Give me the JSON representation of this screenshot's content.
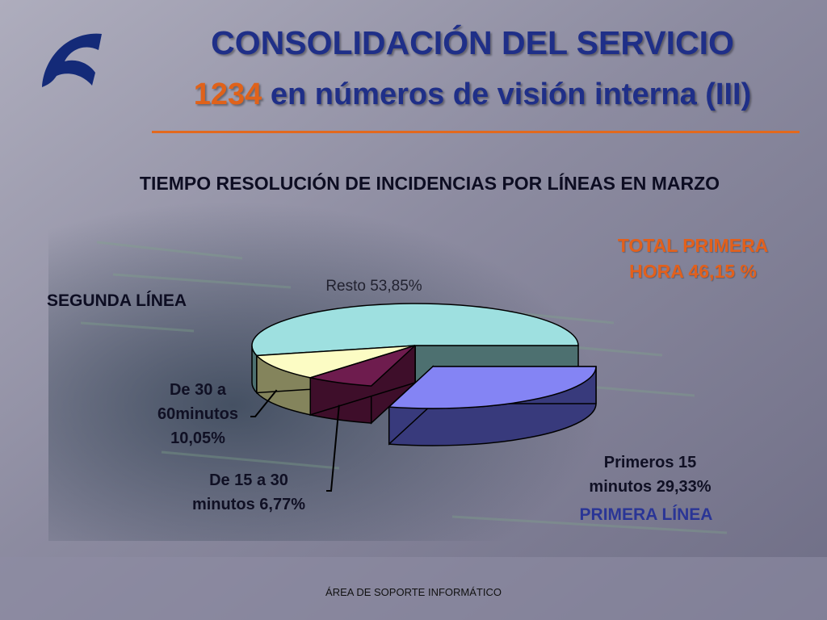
{
  "slide": {
    "title_line1": "CONSOLIDACIÓN DEL SERVICIO",
    "title_line2_number": "1234",
    "title_line2_rest": " en números de visión interna (III)",
    "second_line_label": "SEGUNDA LÍNEA",
    "first_line_label": "PRIMERA LÍNEA",
    "first_hour_total_line1": "TOTAL PRIMERA",
    "first_hour_total_line2": "HORA 46,15 %",
    "footer": "ÁREA DE SOPORTE INFORMÁTICO"
  },
  "colors": {
    "title": "#1f2f88",
    "accent": "#e2601c",
    "divider": "#e2691e",
    "first_line": "#2a3596"
  },
  "chart_data": {
    "type": "pie",
    "title": "TIEMPO RESOLUCIÓN DE INCIDENCIAS POR LÍNEAS EN MARZO",
    "style": "3d-exploded",
    "slices": [
      {
        "name": "Resto",
        "value": 53.85,
        "label_line1": "Resto 53,85%",
        "label_line2": "",
        "label_line3": "",
        "color": "#9ee0e0",
        "side": "#4d7070"
      },
      {
        "name": "Primeros 15 minutos",
        "value": 29.33,
        "label_line1": "Primeros 15",
        "label_line2": "minutos 29,33%",
        "label_line3": "",
        "color": "#8484f4",
        "side": "#383a7c",
        "exploded": true
      },
      {
        "name": "De 15 a 30 minutos",
        "value": 6.77,
        "label_line1": "De 15 a 30",
        "label_line2": "minutos 6,77%",
        "label_line3": "",
        "color": "#6e1c4e",
        "side": "#3e0e2a"
      },
      {
        "name": "De 30 a 60minutos",
        "value": 10.05,
        "label_line1": "De 30 a",
        "label_line2": "60minutos",
        "label_line3": "10,05%",
        "color": "#fcfcc4",
        "side": "#84845c"
      }
    ]
  }
}
